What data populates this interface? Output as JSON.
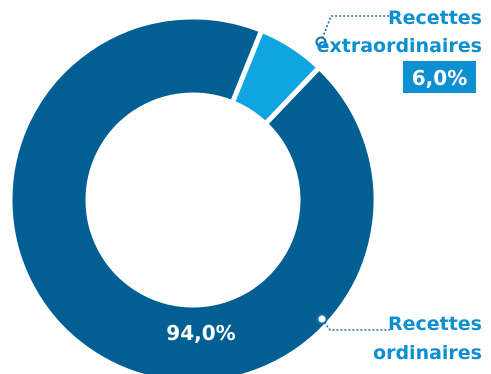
{
  "chart_data": {
    "type": "pie",
    "donut": true,
    "title": "",
    "legend": "none",
    "categories": [
      "Recettes extraordinaires",
      "Recettes ordinaires"
    ],
    "values": [
      6.0,
      94.0
    ],
    "unit": "%",
    "series": [
      {
        "values": [
          6.0,
          94.0
        ]
      }
    ],
    "slices": [
      {
        "label_lines": [
          "Recettes",
          "extraordinaires"
        ],
        "value": 6.0,
        "value_label": "6,0%",
        "color": "#0ea5e0"
      },
      {
        "label_lines": [
          "Recettes",
          "ordinaires"
        ],
        "value": 94.0,
        "value_label": "94,0%",
        "color": "#015f94"
      }
    ],
    "colors": {
      "label_text": "#0e8fd0",
      "value_box": "#0e8fd0",
      "value_box_text": "#ffffff",
      "inside_value_text": "#ffffff",
      "separator": "#ffffff",
      "leader_line": "#1a6ea8"
    }
  }
}
